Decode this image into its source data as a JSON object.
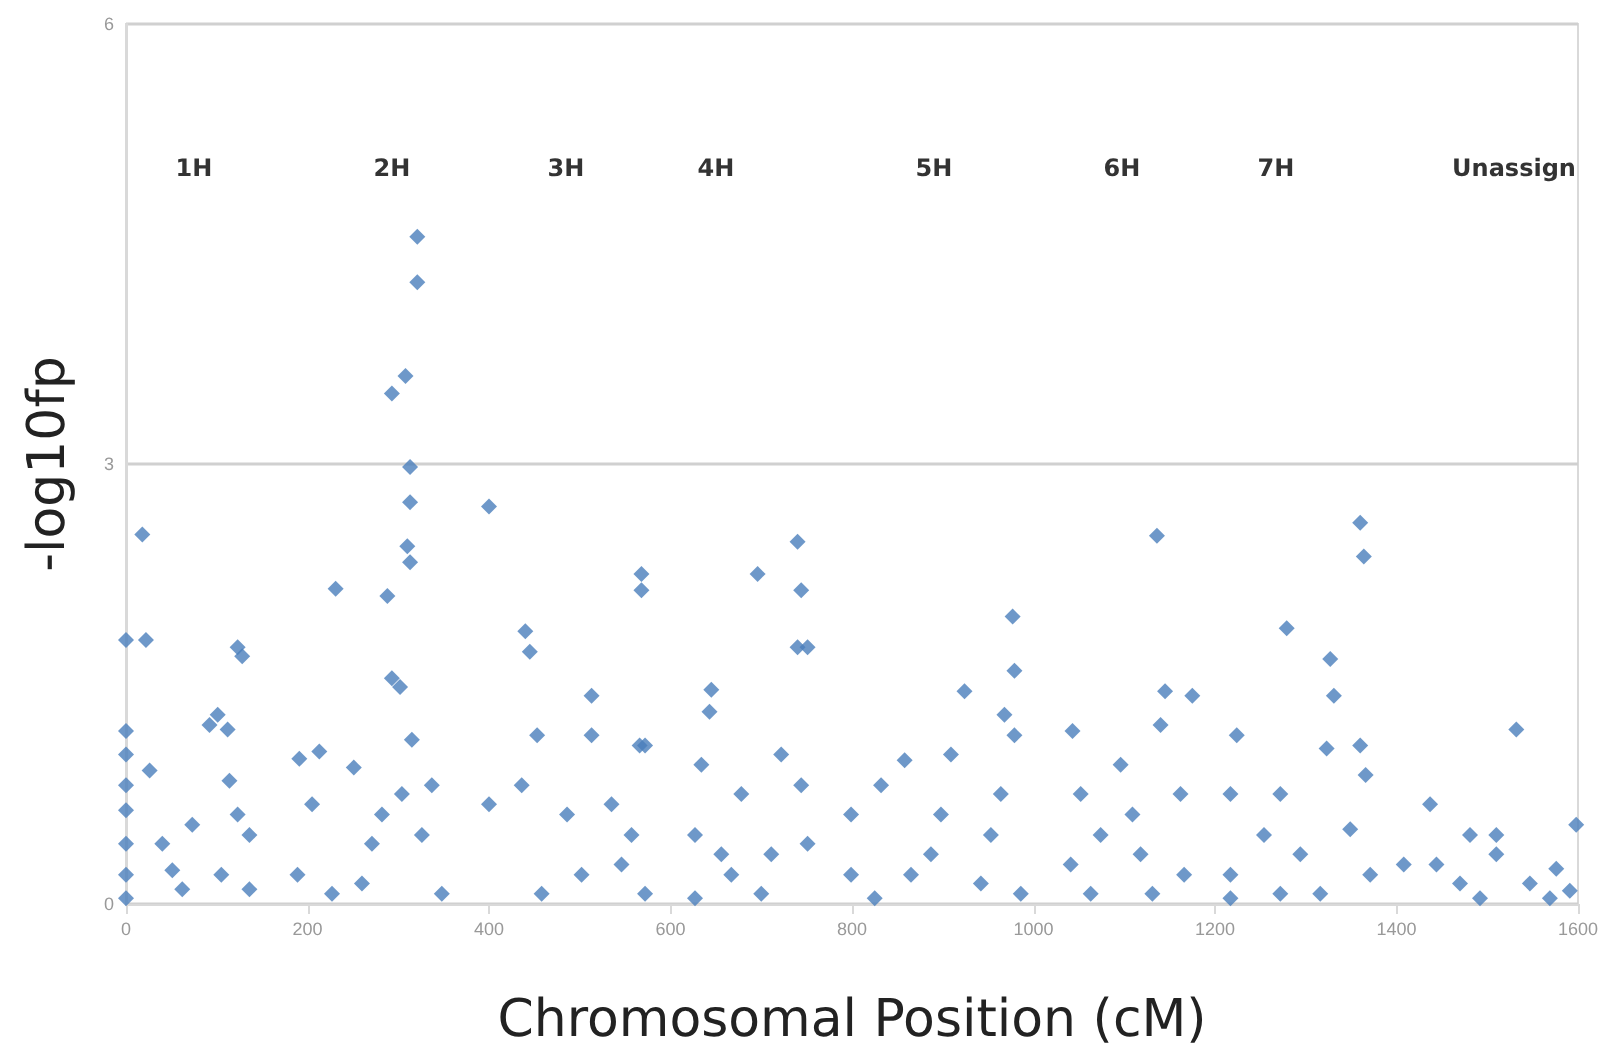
{
  "chart_data": {
    "type": "scatter",
    "xlabel": "Chromosomal Position (cM)",
    "ylabel": "-log10fp",
    "xlim": [
      0,
      1600
    ],
    "xticks": [
      0,
      200,
      400,
      600,
      800,
      1000,
      1200,
      1400,
      1600
    ],
    "ylim": [
      0,
      6
    ],
    "yticks": [
      0,
      3,
      6
    ],
    "grid": "y",
    "marker": "diamond",
    "annotations": [
      "1H",
      "2H",
      "3H",
      "4H",
      "5H",
      "6H",
      "7H",
      "Unassign"
    ],
    "series": [
      {
        "color": "#4a7ebb",
        "x": [
          0,
          22,
          18,
          0,
          0,
          0,
          0,
          0,
          0,
          0,
          26,
          40,
          62,
          73,
          92,
          101,
          112,
          123,
          128,
          114,
          123,
          136,
          136,
          105,
          51,
          191,
          213,
          231,
          251,
          288,
          293,
          302,
          293,
          308,
          313,
          313,
          310,
          313,
          321,
          321,
          315,
          189,
          227,
          260,
          271,
          326,
          337,
          348,
          205,
          282,
          304,
          400,
          440,
          445,
          400,
          436,
          453,
          486,
          513,
          513,
          502,
          568,
          568,
          566,
          572,
          557,
          572,
          458,
          535,
          546,
          627,
          627,
          643,
          645,
          696,
          740,
          744,
          740,
          751,
          634,
          678,
          722,
          744,
          751,
          700,
          667,
          711,
          656,
          799,
          799,
          825,
          832,
          858,
          887,
          909,
          924,
          942,
          964,
          968,
          979,
          977,
          979,
          986,
          865,
          898,
          953,
          1043,
          1052,
          1041,
          1074,
          1063,
          1136,
          1145,
          1140,
          1175,
          1162,
          1166,
          1131,
          1109,
          1096,
          1118,
          1224,
          1217,
          1217,
          1217,
          1272,
          1279,
          1327,
          1331,
          1323,
          1360,
          1364,
          1360,
          1366,
          1349,
          1371,
          1294,
          1272,
          1316,
          1254,
          1437,
          1444,
          1481,
          1470,
          1510,
          1532,
          1510,
          1547,
          1576,
          1591,
          1598,
          1492,
          1569,
          1408
        ],
        "values": [
          1.8,
          1.8,
          2.52,
          1.18,
          1.02,
          0.81,
          0.64,
          0.41,
          0.2,
          0.04,
          0.91,
          0.41,
          0.1,
          0.54,
          1.22,
          1.29,
          1.19,
          1.75,
          1.69,
          0.84,
          0.61,
          0.47,
          0.1,
          0.2,
          0.23,
          0.99,
          1.04,
          2.15,
          0.93,
          2.1,
          1.54,
          1.48,
          3.48,
          3.6,
          2.98,
          2.74,
          2.44,
          2.33,
          4.55,
          4.24,
          1.12,
          0.2,
          0.07,
          0.14,
          0.41,
          0.47,
          0.81,
          0.07,
          0.68,
          0.61,
          0.75,
          2.71,
          1.86,
          1.72,
          0.68,
          0.81,
          1.15,
          0.61,
          1.42,
          1.15,
          0.2,
          2.25,
          2.14,
          1.08,
          1.08,
          0.47,
          0.07,
          0.07,
          0.68,
          0.27,
          0.47,
          0.04,
          1.31,
          1.46,
          2.25,
          2.47,
          2.14,
          1.75,
          1.75,
          0.95,
          0.75,
          1.02,
          0.81,
          0.41,
          0.07,
          0.2,
          0.34,
          0.34,
          0.2,
          0.61,
          0.04,
          0.81,
          0.98,
          0.34,
          1.02,
          1.45,
          0.14,
          0.75,
          1.29,
          1.59,
          1.96,
          1.15,
          0.07,
          0.2,
          0.61,
          0.47,
          1.18,
          0.75,
          0.27,
          0.47,
          0.07,
          2.51,
          1.45,
          1.22,
          1.42,
          0.75,
          0.2,
          0.07,
          0.61,
          0.95,
          0.34,
          1.15,
          0.75,
          0.2,
          0.04,
          0.75,
          1.88,
          1.67,
          1.42,
          1.06,
          2.6,
          2.37,
          1.08,
          0.88,
          0.51,
          0.2,
          0.34,
          0.07,
          0.07,
          0.47,
          0.68,
          0.27,
          0.47,
          0.14,
          0.47,
          1.19,
          0.34,
          0.14,
          0.24,
          0.09,
          0.54,
          0.04,
          0.04,
          0.27
        ]
      }
    ]
  }
}
